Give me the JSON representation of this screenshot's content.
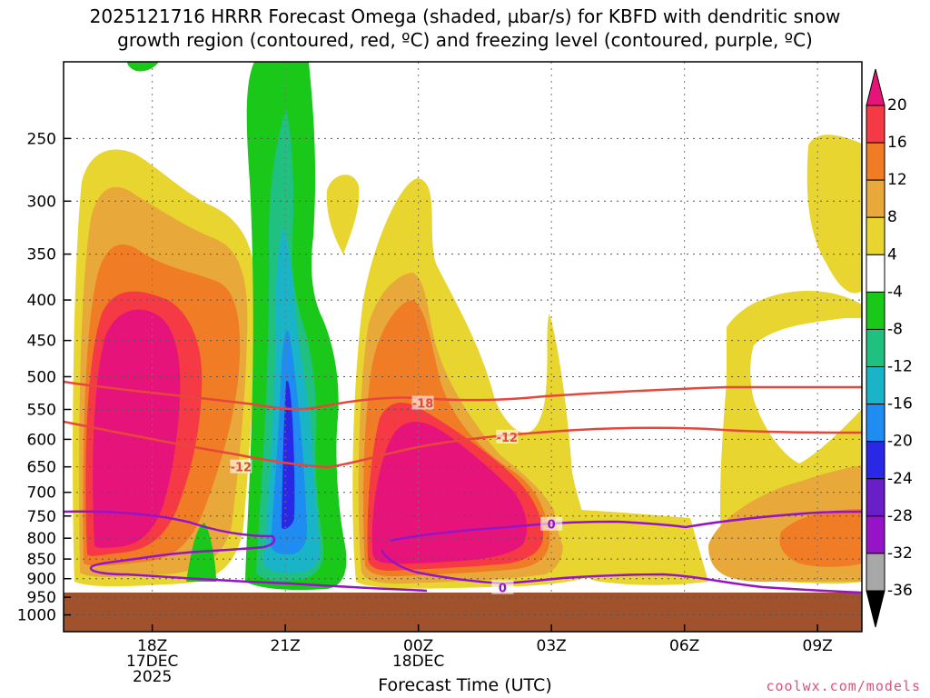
{
  "chart_data": {
    "type": "heatmap",
    "title": "2025121716 HRRR Forecast Omega (shaded, µbar/s) for KBFD with dendritic snow",
    "subtitle": "growth region (contoured, red, ºC) and freezing level (contoured, purple, ºC)",
    "xlabel": "Forecast Time (UTC)",
    "ylabel": "",
    "x_ticks": [
      {
        "label": "18Z",
        "sub1": "17DEC",
        "sub2": "2025",
        "hour": 18
      },
      {
        "label": "21Z",
        "sub1": "",
        "sub2": "",
        "hour": 21
      },
      {
        "label": "00Z",
        "sub1": "18DEC",
        "sub2": "",
        "hour": 24
      },
      {
        "label": "03Z",
        "sub1": "",
        "sub2": "",
        "hour": 27
      },
      {
        "label": "06Z",
        "sub1": "",
        "sub2": "",
        "hour": 30
      },
      {
        "label": "09Z",
        "sub1": "",
        "sub2": "",
        "hour": 33
      }
    ],
    "x_range_hours": [
      16,
      34
    ],
    "y_ticks": [
      250,
      300,
      350,
      400,
      450,
      500,
      550,
      600,
      650,
      700,
      750,
      800,
      850,
      900,
      950,
      1000
    ],
    "y_range_hPa": [
      200,
      1050
    ],
    "y_scale": "log",
    "grid": true,
    "ground_level_hPa": 935,
    "colorbar": {
      "labels": [
        "20",
        "16",
        "12",
        "8",
        "4",
        "-4",
        "-8",
        "-12",
        "-16",
        "-20",
        "-24",
        "-28",
        "-32",
        "-36"
      ],
      "levels": [
        {
          "from": 16,
          "to": 20,
          "color": "#f53a46"
        },
        {
          "from": 12,
          "to": 16,
          "color": "#f07d25"
        },
        {
          "from": 8,
          "to": 12,
          "color": "#e8a93a"
        },
        {
          "from": 4,
          "to": 8,
          "color": "#e8d530"
        },
        {
          "from": -4,
          "to": 4,
          "color": "#ffffff"
        },
        {
          "from": -8,
          "to": -4,
          "color": "#19c819"
        },
        {
          "from": -12,
          "to": -8,
          "color": "#20c080"
        },
        {
          "from": -16,
          "to": -12,
          "color": "#1ab4c8"
        },
        {
          "from": -20,
          "to": -16,
          "color": "#1e8cf0"
        },
        {
          "from": -24,
          "to": -20,
          "color": "#2828e6"
        },
        {
          "from": -28,
          "to": -24,
          "color": "#6a1ec8"
        },
        {
          "from": -32,
          "to": -28,
          "color": "#9614c8"
        },
        {
          "from": -36,
          "to": -32,
          "color": "#a8a8a8"
        }
      ],
      "top_triangle_color": "#e6147a",
      "bottom_triangle_color": "#000000"
    },
    "contour_labels": [
      {
        "text": "-18",
        "hour": 24.1,
        "pressure": 540,
        "color": "#e8463c"
      },
      {
        "text": "-12",
        "hour": 20.0,
        "pressure": 650,
        "color": "#e8463c"
      },
      {
        "text": "-12",
        "hour": 26.0,
        "pressure": 596,
        "color": "#e8463c"
      },
      {
        "text": "0",
        "hour": 27.0,
        "pressure": 768,
        "color": "#9614c8"
      },
      {
        "text": "0",
        "hour": 25.9,
        "pressure": 924,
        "color": "#9614c8"
      }
    ]
  },
  "footer": {
    "credit": "coolwx.com/models"
  }
}
